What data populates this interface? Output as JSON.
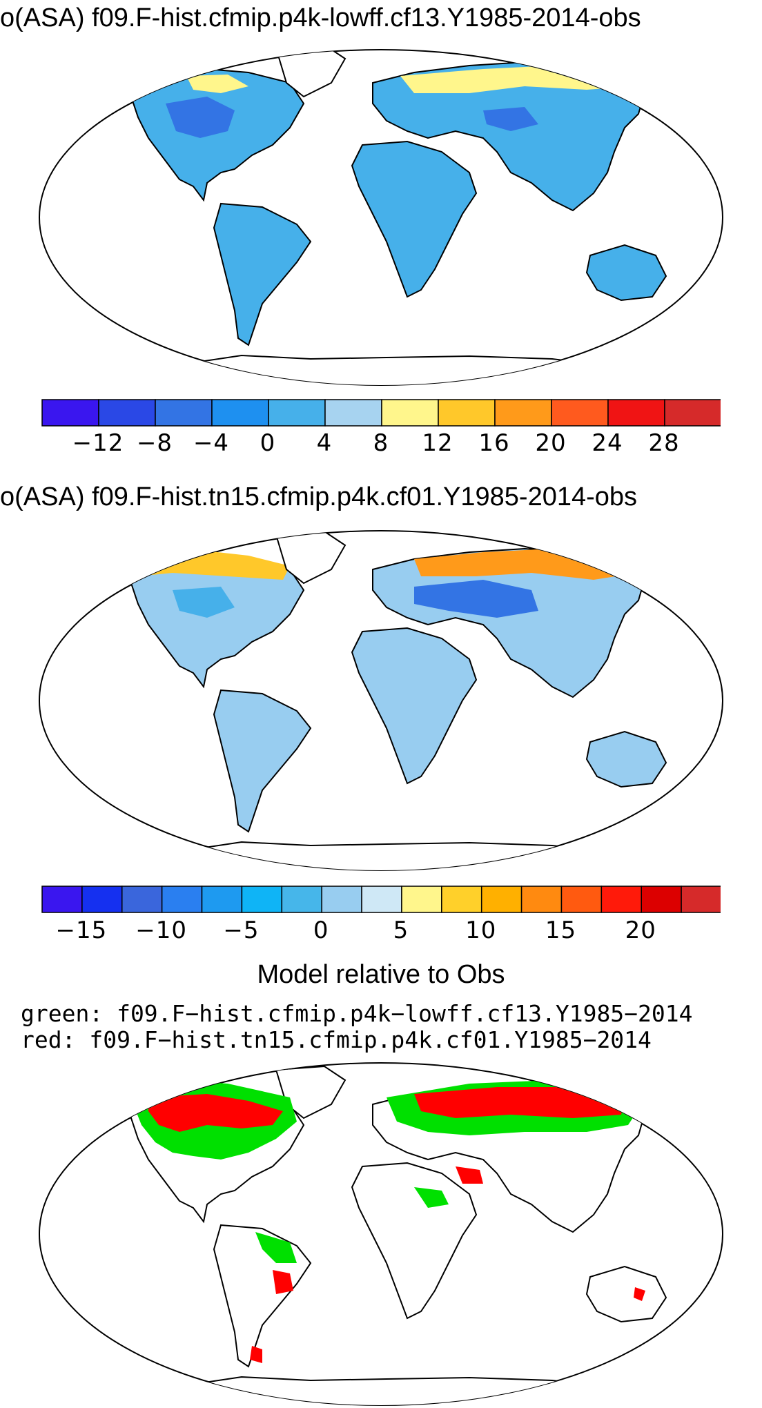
{
  "panels": [
    {
      "title": "o(ASA) f09.F-hist.cfmip.p4k-lowff.cf13.Y1985-2014-obs",
      "colorbar": {
        "colors": [
          "#3a16ef",
          "#2a48e6",
          "#3374e4",
          "#1e90f0",
          "#46b0ea",
          "#a7d3f0",
          "#fff68c",
          "#ffc82a",
          "#ff9a1a",
          "#ff5a1e",
          "#f01414",
          "#d62a2a"
        ],
        "ticks": [
          "−12",
          "−8",
          "−4",
          "0",
          "4",
          "8",
          "12",
          "16",
          "20",
          "24",
          "28"
        ]
      }
    },
    {
      "title": "o(ASA) f09.F-hist.tn15.cfmip.p4k.cf01.Y1985-2014-obs",
      "colorbar": {
        "colors": [
          "#3a16ef",
          "#1530f0",
          "#3a66dc",
          "#2a7ff0",
          "#1e9af0",
          "#0fb4f6",
          "#46b6ea",
          "#98cdf0",
          "#cfe8f6",
          "#fff68c",
          "#ffd02a",
          "#ffb000",
          "#ff8a10",
          "#ff5a10",
          "#ff1a0a",
          "#dc0000",
          "#d62a2a"
        ],
        "ticks": [
          "−15",
          "−10",
          "−5",
          "0",
          "5",
          "10",
          "15",
          "20"
        ]
      }
    }
  ],
  "comparison": {
    "title": "Model relative to Obs",
    "legend": [
      {
        "label": "green: f09.F−hist.cfmip.p4k−lowff.cf13.Y1985−2014",
        "color": "#00e000"
      },
      {
        "label": "red: f09.F−hist.tn15.cfmip.p4k.cf01.Y1985−2014",
        "color": "#ff0000"
      }
    ]
  }
}
